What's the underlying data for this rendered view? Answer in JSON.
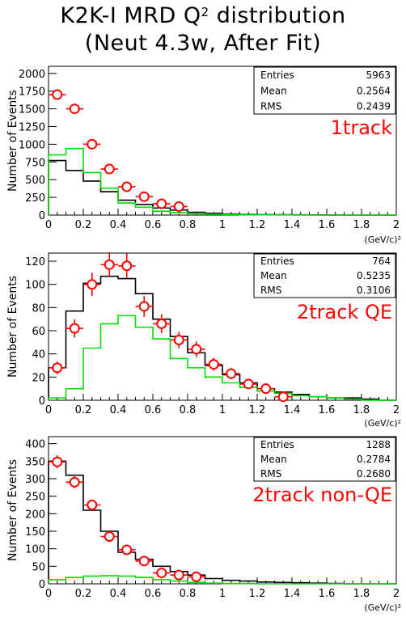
{
  "title": {
    "line1_prefix": "K2K-I MRD Q",
    "line1_sup": "2",
    "line1_suffix": " distribution",
    "line2": "(Neut 4.3w, After Fit)"
  },
  "colors": {
    "data": "#ff0000",
    "mc_total": "#000000",
    "mc_qe": "#00dd00"
  },
  "chart_data": [
    {
      "type": "bar",
      "label": "1track",
      "ylabel": "Number of Events",
      "xlabel_unit": "(GeV/c)²",
      "xlim": [
        0,
        2
      ],
      "ylim": [
        0,
        2100
      ],
      "yticks": [
        0,
        250,
        500,
        750,
        1000,
        1250,
        1500,
        1750,
        2000
      ],
      "xticks": [
        0,
        0.2,
        0.4,
        0.6,
        0.8,
        1,
        1.2,
        1.4,
        1.6,
        1.8,
        2
      ],
      "stats": {
        "entries_label": "Entries",
        "entries": "5963",
        "mean_label": "Mean",
        "mean": "0.2564",
        "rms_label": "RMS",
        "rms": "0.2439"
      },
      "series": [
        {
          "style": "step",
          "color": "#000000",
          "values": [
            770,
            630,
            480,
            330,
            210,
            150,
            100,
            70,
            40,
            25,
            15,
            10,
            7,
            5,
            3,
            2,
            1,
            0,
            0,
            0
          ]
        },
        {
          "style": "step",
          "color": "#00dd00",
          "values": [
            850,
            940,
            600,
            380,
            170,
            110,
            55,
            35,
            20,
            12,
            8,
            5,
            3,
            2,
            1,
            0,
            0,
            0,
            0,
            0
          ]
        },
        {
          "style": "points",
          "color": "#ff0000",
          "x": [
            0.05,
            0.15,
            0.25,
            0.35,
            0.45,
            0.55,
            0.65,
            0.75
          ],
          "values": [
            1700,
            1500,
            1000,
            650,
            400,
            260,
            160,
            120
          ]
        }
      ]
    },
    {
      "type": "bar",
      "label": "2track QE",
      "ylabel": "Number of Events",
      "xlabel_unit": "(GeV/c)²",
      "xlim": [
        0,
        2
      ],
      "ylim": [
        0,
        127
      ],
      "yticks": [
        0,
        20,
        40,
        60,
        80,
        100,
        120
      ],
      "xticks": [
        0,
        0.2,
        0.4,
        0.6,
        0.8,
        1,
        1.2,
        1.4,
        1.6,
        1.8,
        2
      ],
      "stats": {
        "entries_label": "Entries",
        "entries": "764",
        "mean_label": "Mean",
        "mean": "0.5235",
        "rms_label": "RMS",
        "rms": "0.3106"
      },
      "series": [
        {
          "style": "step",
          "color": "#000000",
          "values": [
            28,
            77,
            101,
            107,
            105,
            92,
            70,
            55,
            41,
            30,
            22,
            15,
            10,
            7,
            5,
            3,
            2,
            2,
            1,
            0
          ]
        },
        {
          "style": "step",
          "color": "#00dd00",
          "values": [
            2,
            10,
            45,
            66,
            73,
            63,
            53,
            36,
            28,
            20,
            15,
            11,
            8,
            6,
            4,
            3,
            2,
            1,
            0,
            0
          ]
        },
        {
          "style": "points",
          "color": "#ff0000",
          "x": [
            0.05,
            0.15,
            0.25,
            0.35,
            0.45,
            0.55,
            0.65,
            0.75,
            0.85,
            0.95,
            1.05,
            1.15,
            1.25,
            1.35
          ],
          "values": [
            28,
            62,
            100,
            117,
            116,
            81,
            66,
            52,
            44,
            31,
            23,
            14,
            10,
            3
          ]
        }
      ]
    },
    {
      "type": "bar",
      "label": "2track non-QE",
      "ylabel": "Number of Events",
      "xlabel_unit": "(GeV/c)²",
      "xlim": [
        0,
        2
      ],
      "ylim": [
        0,
        420
      ],
      "yticks": [
        0,
        50,
        100,
        150,
        200,
        250,
        300,
        350,
        400
      ],
      "xticks": [
        0,
        0.2,
        0.4,
        0.6,
        0.8,
        1,
        1.2,
        1.4,
        1.6,
        1.8,
        2
      ],
      "stats": {
        "entries_label": "Entries",
        "entries": "1288",
        "mean_label": "Mean",
        "mean": "0.2784",
        "rms_label": "RMS",
        "rms": "0.2680"
      },
      "series": [
        {
          "style": "step",
          "color": "#000000",
          "values": [
            350,
            310,
            210,
            150,
            90,
            70,
            50,
            35,
            25,
            15,
            10,
            8,
            5,
            4,
            3,
            2,
            1,
            0,
            0,
            0
          ]
        },
        {
          "style": "step",
          "color": "#00dd00",
          "values": [
            12,
            18,
            22,
            23,
            22,
            18,
            12,
            8,
            4,
            2,
            1,
            1,
            0,
            0,
            0,
            0,
            0,
            0,
            0,
            0
          ]
        },
        {
          "style": "points",
          "color": "#ff0000",
          "x": [
            0.05,
            0.15,
            0.25,
            0.35,
            0.45,
            0.55,
            0.65,
            0.75,
            0.85
          ],
          "values": [
            348,
            290,
            225,
            135,
            97,
            65,
            31,
            25,
            20
          ]
        }
      ]
    }
  ]
}
